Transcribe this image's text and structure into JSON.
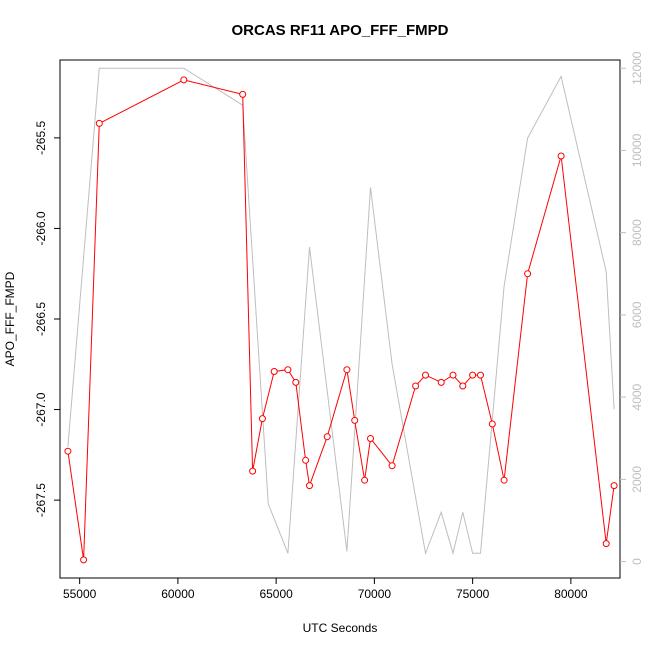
{
  "chart_data": {
    "type": "line",
    "title": "ORCAS RF11 APO_FFF_FMPD",
    "xlabel": "UTC Seconds",
    "ylabel": "APO_FFF_FMPD",
    "grid": false,
    "legend": "none",
    "xlim": [
      54000,
      82500
    ],
    "ylim": [
      -267.93,
      -265.07
    ],
    "y2lim": [
      -400,
      12200
    ],
    "x_ticks": [
      55000,
      60000,
      65000,
      70000,
      75000,
      80000
    ],
    "x_tick_labels": [
      "55000",
      "60000",
      "65000",
      "70000",
      "75000",
      "80000"
    ],
    "y_ticks": [
      -267.5,
      -267.0,
      -266.5,
      -266.0,
      -265.5
    ],
    "y_tick_labels": [
      "-267.5",
      "-267.0",
      "-266.5",
      "-266.0",
      "-265.5"
    ],
    "y2_ticks": [
      0,
      2000,
      4000,
      6000,
      8000,
      10000,
      12000
    ],
    "y2_tick_labels": [
      "0",
      "2000",
      "4000",
      "6000",
      "8000",
      "10000",
      "12000"
    ],
    "colors": {
      "primary": "#ff0000",
      "secondary": "#bebebe",
      "axes": "#000000",
      "right_axis": "#bebebe"
    },
    "series": [
      {
        "axis": "left",
        "style": "line-with-open-circles",
        "color": "#ff0000",
        "x": [
          54400,
          55200,
          56000,
          60300,
          63300,
          63800,
          64300,
          64900,
          65600,
          66000,
          66500,
          66700,
          67600,
          68600,
          69000,
          69500,
          69800,
          70900,
          72100,
          72600,
          73400,
          74000,
          74500,
          75000,
          75400,
          76000,
          76600,
          77800,
          79500,
          81800,
          82200
        ],
        "y": [
          -267.23,
          -267.83,
          -265.42,
          -265.18,
          -265.26,
          -267.34,
          -267.05,
          -266.79,
          -266.78,
          -266.85,
          -267.28,
          -267.42,
          -267.15,
          -266.78,
          -267.06,
          -267.39,
          -267.16,
          -267.31,
          -266.87,
          -266.81,
          -266.85,
          -266.81,
          -266.87,
          -266.81,
          -266.81,
          -267.08,
          -267.39,
          -266.25,
          -265.6,
          -267.74,
          -267.42
        ]
      },
      {
        "axis": "right",
        "style": "line",
        "color": "#bebebe",
        "x": [
          54400,
          56000,
          60300,
          63300,
          64600,
          65600,
          66700,
          68600,
          69800,
          70900,
          72600,
          73400,
          74000,
          74500,
          75000,
          75400,
          76600,
          77800,
          79500,
          81800,
          82200
        ],
        "y": [
          2800,
          12000,
          12000,
          11100,
          1400,
          200,
          7650,
          250,
          9100,
          4800,
          200,
          1200,
          200,
          1200,
          200,
          200,
          6700,
          10300,
          11800,
          7050,
          3700
        ]
      }
    ]
  }
}
